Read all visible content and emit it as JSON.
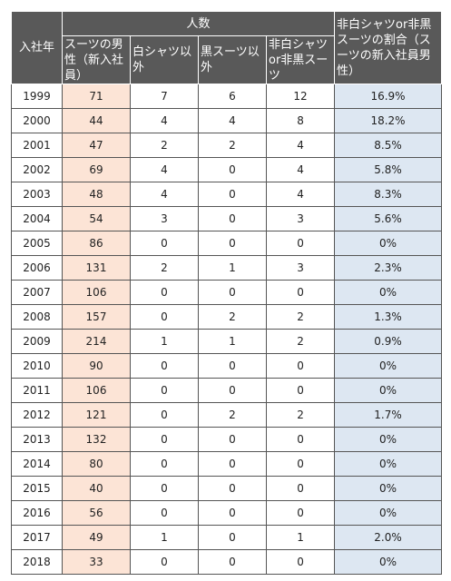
{
  "headers": {
    "year": "入社年",
    "people": "人数",
    "men_in_suits": "スーツの男性（新入社員）",
    "non_white_shirt": "白シャツ以外",
    "non_black_suit": "黒スーツ以外",
    "non_white_or_non_black": "非白シャツor非黒スーツ",
    "ratio": "非白シャツor非黒スーツの割合（スーツの新入社員男性）"
  },
  "rows": [
    {
      "year": "1999",
      "men": "71",
      "non_white": "7",
      "non_black": "6",
      "either": "12",
      "ratio": "16.9%"
    },
    {
      "year": "2000",
      "men": "44",
      "non_white": "4",
      "non_black": "4",
      "either": "8",
      "ratio": "18.2%"
    },
    {
      "year": "2001",
      "men": "47",
      "non_white": "2",
      "non_black": "2",
      "either": "4",
      "ratio": "8.5%"
    },
    {
      "year": "2002",
      "men": "69",
      "non_white": "4",
      "non_black": "0",
      "either": "4",
      "ratio": "5.8%"
    },
    {
      "year": "2003",
      "men": "48",
      "non_white": "4",
      "non_black": "0",
      "either": "4",
      "ratio": "8.3%"
    },
    {
      "year": "2004",
      "men": "54",
      "non_white": "3",
      "non_black": "0",
      "either": "3",
      "ratio": "5.6%"
    },
    {
      "year": "2005",
      "men": "86",
      "non_white": "0",
      "non_black": "0",
      "either": "0",
      "ratio": "0%"
    },
    {
      "year": "2006",
      "men": "131",
      "non_white": "2",
      "non_black": "1",
      "either": "3",
      "ratio": "2.3%"
    },
    {
      "year": "2007",
      "men": "106",
      "non_white": "0",
      "non_black": "0",
      "either": "0",
      "ratio": "0%"
    },
    {
      "year": "2008",
      "men": "157",
      "non_white": "0",
      "non_black": "2",
      "either": "2",
      "ratio": "1.3%"
    },
    {
      "year": "2009",
      "men": "214",
      "non_white": "1",
      "non_black": "1",
      "either": "2",
      "ratio": "0.9%"
    },
    {
      "year": "2010",
      "men": "90",
      "non_white": "0",
      "non_black": "0",
      "either": "0",
      "ratio": "0%"
    },
    {
      "year": "2011",
      "men": "106",
      "non_white": "0",
      "non_black": "0",
      "either": "0",
      "ratio": "0%"
    },
    {
      "year": "2012",
      "men": "121",
      "non_white": "0",
      "non_black": "2",
      "either": "2",
      "ratio": "1.7%"
    },
    {
      "year": "2013",
      "men": "132",
      "non_white": "0",
      "non_black": "0",
      "either": "0",
      "ratio": "0%"
    },
    {
      "year": "2014",
      "men": "80",
      "non_white": "0",
      "non_black": "0",
      "either": "0",
      "ratio": "0%"
    },
    {
      "year": "2015",
      "men": "40",
      "non_white": "0",
      "non_black": "0",
      "either": "0",
      "ratio": "0%"
    },
    {
      "year": "2016",
      "men": "56",
      "non_white": "0",
      "non_black": "0",
      "either": "0",
      "ratio": "0%"
    },
    {
      "year": "2017",
      "men": "49",
      "non_white": "1",
      "non_black": "0",
      "either": "1",
      "ratio": "2.0%"
    },
    {
      "year": "2018",
      "men": "33",
      "non_white": "0",
      "non_black": "0",
      "either": "0",
      "ratio": "0%"
    }
  ],
  "colors": {
    "header_bg": "#595959",
    "men_column_bg": "#fce4d6",
    "ratio_column_bg": "#dde7f2"
  }
}
